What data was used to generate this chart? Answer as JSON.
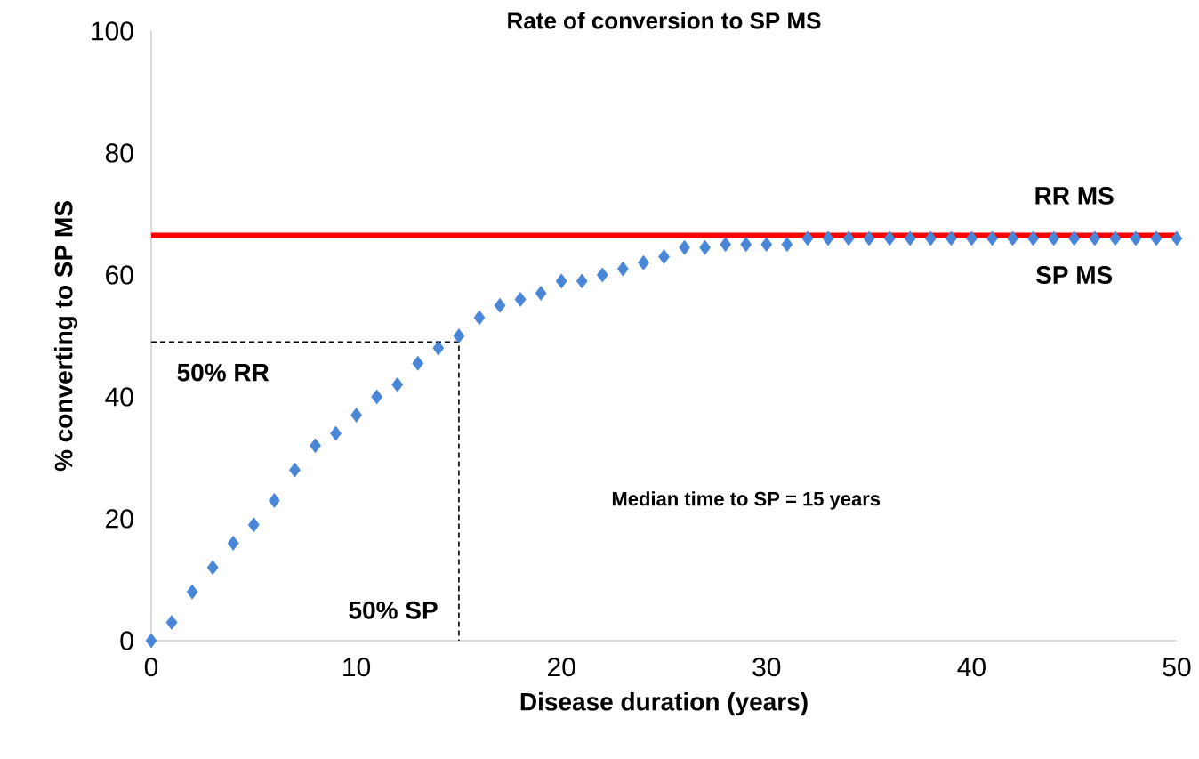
{
  "chart_data": {
    "type": "scatter",
    "title": "Rate of conversion to SP MS",
    "xlabel": "Disease duration (years)",
    "ylabel": "% converting to SP MS",
    "xlim": [
      0,
      50
    ],
    "ylim": [
      0,
      100
    ],
    "xticks": [
      0,
      10,
      20,
      30,
      40,
      50
    ],
    "yticks": [
      0,
      20,
      40,
      60,
      80,
      100
    ],
    "series": [
      {
        "color": "#4a86d8",
        "marker": "diamond",
        "x": [
          0,
          1,
          2,
          3,
          4,
          5,
          6,
          7,
          8,
          9,
          10,
          11,
          12,
          13,
          14,
          15,
          16,
          17,
          18,
          19,
          20,
          21,
          22,
          23,
          24,
          25,
          26,
          27,
          28,
          29,
          30,
          31,
          32,
          33,
          34,
          35,
          36,
          37,
          38,
          39,
          40,
          41,
          42,
          43,
          44,
          45,
          46,
          47,
          48,
          49,
          50
        ],
        "values": [
          0,
          3,
          8,
          12,
          16,
          19,
          23,
          28,
          32,
          34,
          37,
          40,
          42,
          45.5,
          48,
          50,
          53,
          55,
          56,
          57,
          59,
          59,
          60,
          61,
          62,
          63,
          64.5,
          64.5,
          65,
          65,
          65,
          65,
          66,
          66,
          66,
          66,
          66,
          66,
          66,
          66,
          66,
          66,
          66,
          66,
          66,
          66,
          66,
          66,
          66,
          66,
          66
        ]
      },
      {
        "type": "line",
        "color": "#000000",
        "line_style": "dashed",
        "x": [
          0,
          15,
          15
        ],
        "values": [
          49,
          49,
          0
        ]
      }
    ],
    "ref_lines": [
      {
        "axis": "y",
        "value": 66.5,
        "color": "#ff0000"
      }
    ],
    "annotations": [
      "RR MS",
      "SP MS",
      "50% RR",
      "50% SP",
      "Median time to SP = 15 years"
    ]
  }
}
